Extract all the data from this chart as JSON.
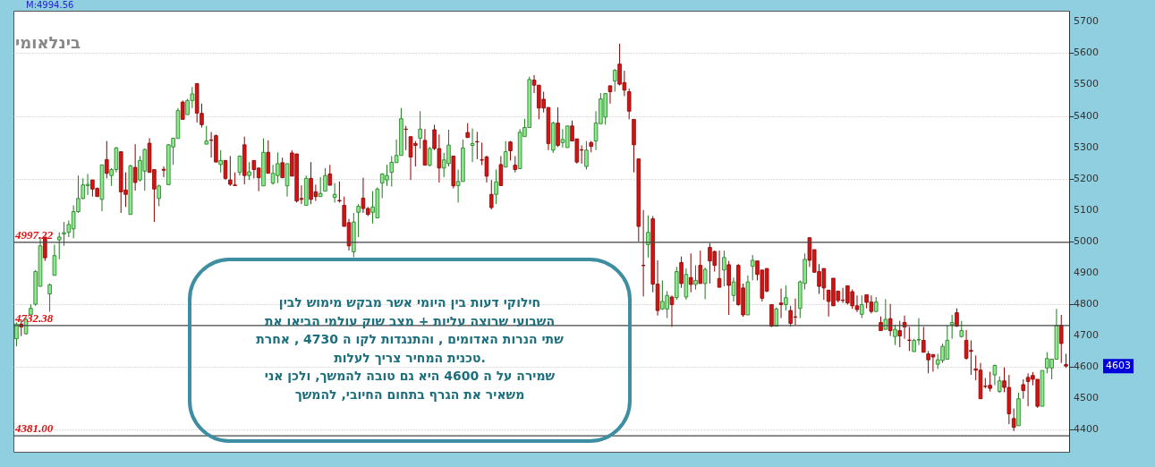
{
  "chart_data": {
    "type": "candlestick",
    "title": "בינלאומי",
    "categories": [
      null,
      null,
      null,
      null,
      null,
      null,
      null,
      null,
      null,
      null,
      null,
      null,
      null,
      null,
      null,
      null,
      null,
      null,
      null,
      null,
      null,
      null,
      null,
      null,
      null,
      null,
      null,
      null,
      null,
      null,
      null,
      null,
      null,
      null,
      null,
      null,
      null,
      null,
      null,
      null,
      null,
      null,
      null,
      null,
      null,
      null,
      null,
      null,
      null,
      null,
      null,
      null,
      null,
      null,
      null,
      null,
      null,
      null,
      null,
      null,
      null,
      null,
      null,
      null,
      null,
      null,
      null,
      null,
      null,
      null,
      null,
      null,
      null,
      null,
      null,
      null,
      null,
      null,
      null,
      null,
      null,
      null,
      null,
      null,
      null,
      null,
      null,
      null,
      null,
      null,
      null,
      null,
      null,
      null,
      null,
      null,
      null,
      null,
      null,
      null,
      null,
      null,
      null,
      null,
      null,
      null,
      null,
      null,
      null,
      null,
      null,
      null,
      null,
      null,
      null,
      null,
      null,
      null,
      null,
      null,
      null,
      null,
      null,
      null,
      null,
      null,
      null,
      null,
      null,
      null,
      null,
      null,
      null,
      null,
      null,
      null,
      null,
      null,
      null,
      null,
      null,
      null,
      null,
      null,
      null,
      null,
      null,
      null,
      null,
      null,
      null,
      null,
      null,
      null,
      null,
      null,
      null,
      null,
      null,
      null,
      null,
      null,
      null,
      null,
      null,
      null,
      null,
      null,
      null,
      null,
      null,
      null,
      null,
      null,
      null,
      null,
      null,
      null,
      null,
      null,
      null,
      null,
      null,
      null,
      null,
      null,
      null,
      null,
      null,
      null,
      null,
      null,
      null,
      null,
      null,
      null,
      null,
      null,
      null,
      null,
      null,
      null,
      null,
      null,
      null,
      null,
      null,
      null,
      null,
      null,
      null,
      null,
      null,
      null,
      null,
      null,
      null,
      null,
      null,
      null,
      null,
      null
    ],
    "ohlc": [
      [
        4690,
        4742,
        4666,
        4737
      ],
      [
        4737,
        4752,
        4699,
        4728
      ],
      [
        4706,
        4757,
        4704,
        4752
      ],
      [
        4766,
        4800,
        4766,
        4787
      ],
      [
        4800,
        4909,
        4795,
        4904
      ],
      [
        4857,
        5014,
        4857,
        4986
      ],
      [
        5014,
        5014,
        4938,
        4948
      ],
      [
        4833,
        4866,
        4776,
        4862
      ],
      [
        4892,
        4990,
        4892,
        4955
      ],
      [
        5005,
        5029,
        4943,
        5014
      ],
      [
        5024,
        5062,
        4986,
        5028
      ],
      [
        5029,
        5067,
        5014,
        5054
      ],
      [
        5040,
        5115,
        5010,
        5095
      ],
      [
        5095,
        5210,
        5091,
        5137
      ],
      [
        5137,
        5201,
        5134,
        5180
      ],
      [
        5178,
        5215,
        5148,
        5182
      ],
      [
        5196,
        5196,
        5143,
        5167
      ],
      [
        5169,
        5172,
        5143,
        5143
      ],
      [
        5134,
        5244,
        5096,
        5244
      ],
      [
        5261,
        5320,
        5201,
        5217
      ],
      [
        5210,
        5234,
        5177,
        5229
      ],
      [
        5229,
        5301,
        5220,
        5298
      ],
      [
        5286,
        5286,
        5091,
        5158
      ],
      [
        5164,
        5220,
        5110,
        5150
      ],
      [
        5086,
        5244,
        5086,
        5241
      ],
      [
        5236,
        5310,
        5162,
        5188
      ],
      [
        5196,
        5272,
        5191,
        5258
      ],
      [
        5224,
        5296,
        5162,
        5293
      ],
      [
        5313,
        5329,
        5220,
        5220
      ],
      [
        5229,
        5229,
        5062,
        5167
      ],
      [
        5137,
        5181,
        5112,
        5177
      ],
      [
        5230,
        5239,
        5205,
        5227
      ],
      [
        5181,
        5310,
        5181,
        5308
      ],
      [
        5301,
        5329,
        5244,
        5329
      ],
      [
        5328,
        5425,
        5328,
        5417
      ],
      [
        5444,
        5449,
        5389,
        5389
      ],
      [
        5404,
        5454,
        5404,
        5449
      ],
      [
        5449,
        5492,
        5425,
        5470
      ],
      [
        5503,
        5503,
        5379,
        5409
      ],
      [
        5408,
        5439,
        5363,
        5372
      ],
      [
        5310,
        5368,
        5310,
        5320
      ],
      [
        5323,
        5349,
        5267,
        5322
      ],
      [
        5337,
        5341,
        5253,
        5253
      ],
      [
        5245,
        5291,
        5220,
        5258
      ],
      [
        5258,
        5258,
        5196,
        5201
      ],
      [
        5196,
        5272,
        5177,
        5182
      ],
      [
        5180,
        5220,
        5177,
        5178
      ],
      [
        5220,
        5274,
        5210,
        5272
      ],
      [
        5308,
        5334,
        5182,
        5210
      ],
      [
        5210,
        5253,
        5196,
        5222
      ],
      [
        5258,
        5258,
        5201,
        5229
      ],
      [
        5234,
        5234,
        5160,
        5203
      ],
      [
        5177,
        5328,
        5177,
        5284
      ],
      [
        5284,
        5322,
        5217,
        5217
      ],
      [
        5186,
        5244,
        5181,
        5217
      ],
      [
        5210,
        5284,
        5186,
        5248
      ],
      [
        5251,
        5267,
        5203,
        5203
      ],
      [
        5177,
        5248,
        5143,
        5248
      ],
      [
        5282,
        5291,
        5208,
        5208
      ],
      [
        5279,
        5279,
        5124,
        5129
      ],
      [
        5137,
        5179,
        5119,
        5134
      ],
      [
        5115,
        5210,
        5115,
        5201
      ],
      [
        5201,
        5253,
        5119,
        5134
      ],
      [
        5158,
        5181,
        5129,
        5143
      ],
      [
        5143,
        5205,
        5143,
        5153
      ],
      [
        5160,
        5234,
        5160,
        5210
      ],
      [
        5215,
        5244,
        5179,
        5179
      ],
      [
        5140,
        5186,
        5124,
        5150
      ],
      [
        5131,
        5191,
        5124,
        5129
      ],
      [
        5115,
        5143,
        5048,
        5048
      ],
      [
        5060,
        5072,
        4971,
        4986
      ],
      [
        4967,
        5091,
        4950,
        5062
      ],
      [
        5093,
        5119,
        5014,
        5112
      ],
      [
        5138,
        5203,
        5091,
        5105
      ],
      [
        5105,
        5110,
        5081,
        5086
      ],
      [
        5093,
        5160,
        5057,
        5110
      ],
      [
        5075,
        5172,
        5075,
        5167
      ],
      [
        5186,
        5217,
        5138,
        5215
      ],
      [
        5196,
        5244,
        5177,
        5210
      ],
      [
        5220,
        5272,
        5175,
        5252
      ],
      [
        5251,
        5325,
        5251,
        5274
      ],
      [
        5274,
        5425,
        5274,
        5391
      ],
      [
        5358,
        5368,
        5291,
        5357
      ],
      [
        5334,
        5334,
        5196,
        5269
      ],
      [
        5312,
        5320,
        5239,
        5306
      ],
      [
        5329,
        5415,
        5296,
        5358
      ],
      [
        5322,
        5358,
        5243,
        5243
      ],
      [
        5243,
        5301,
        5239,
        5296
      ],
      [
        5356,
        5372,
        5291,
        5296
      ],
      [
        5296,
        5341,
        5188,
        5234
      ],
      [
        5234,
        5282,
        5205,
        5260
      ],
      [
        5248,
        5356,
        5239,
        5307
      ],
      [
        5272,
        5272,
        5169,
        5177
      ],
      [
        5178,
        5229,
        5124,
        5191
      ],
      [
        5191,
        5325,
        5191,
        5298
      ],
      [
        5347,
        5377,
        5331,
        5331
      ],
      [
        5306,
        5360,
        5253,
        5312
      ],
      [
        5318,
        5349,
        5262,
        5317
      ],
      [
        5260,
        5315,
        5243,
        5259
      ],
      [
        5269,
        5274,
        5188,
        5208
      ],
      [
        5150,
        5196,
        5102,
        5108
      ],
      [
        5150,
        5229,
        5119,
        5190
      ],
      [
        5245,
        5272,
        5178,
        5178
      ],
      [
        5237,
        5320,
        5237,
        5286
      ],
      [
        5317,
        5320,
        5258,
        5289
      ],
      [
        5243,
        5272,
        5220,
        5229
      ],
      [
        5232,
        5358,
        5232,
        5348
      ],
      [
        5334,
        5391,
        5334,
        5363
      ],
      [
        5363,
        5525,
        5363,
        5516
      ],
      [
        5514,
        5530,
        5473,
        5498
      ],
      [
        5498,
        5498,
        5389,
        5425
      ],
      [
        5453,
        5477,
        5411,
        5425
      ],
      [
        5427,
        5427,
        5291,
        5312
      ],
      [
        5291,
        5382,
        5282,
        5377
      ],
      [
        5377,
        5427,
        5301,
        5306
      ],
      [
        5315,
        5358,
        5299,
        5325
      ],
      [
        5299,
        5368,
        5299,
        5368
      ],
      [
        5368,
        5385,
        5320,
        5320
      ],
      [
        5327,
        5327,
        5248,
        5253
      ],
      [
        5292,
        5306,
        5248,
        5291
      ],
      [
        5239,
        5320,
        5229,
        5291
      ],
      [
        5315,
        5320,
        5284,
        5303
      ],
      [
        5320,
        5415,
        5291,
        5377
      ],
      [
        5375,
        5473,
        5375,
        5454
      ],
      [
        5396,
        5473,
        5372,
        5471
      ],
      [
        5496,
        5496,
        5439,
        5477
      ],
      [
        5511,
        5549,
        5477,
        5545
      ],
      [
        5565,
        5630,
        5497,
        5501
      ],
      [
        5506,
        5544,
        5463,
        5482
      ],
      [
        5477,
        5487,
        5389,
        5415
      ],
      [
        5389,
        5389,
        5220,
        5308
      ],
      [
        5263,
        5263,
        5000,
        5048
      ],
      [
        4924,
        5100,
        4825,
        4923
      ],
      [
        4990,
        5083,
        4949,
        5029
      ],
      [
        5072,
        5081,
        4838,
        4864
      ],
      [
        4864,
        4940,
        4764,
        4780
      ],
      [
        4785,
        4876,
        4782,
        4809
      ],
      [
        4785,
        4842,
        4756,
        4828
      ],
      [
        4823,
        4828,
        4728,
        4799
      ],
      [
        4821,
        4919,
        4814,
        4904
      ],
      [
        4933,
        4952,
        4852,
        4866
      ],
      [
        4823,
        4914,
        4814,
        4895
      ],
      [
        4885,
        4962,
        4838,
        4863
      ],
      [
        4863,
        4924,
        4847,
        4876
      ],
      [
        4924,
        4971,
        4866,
        4866
      ],
      [
        4866,
        4917,
        4816,
        4911
      ],
      [
        4981,
        4995,
        4866,
        4938
      ],
      [
        4968,
        4971,
        4904,
        4924
      ],
      [
        4882,
        4971,
        4854,
        4854
      ],
      [
        4909,
        4971,
        4857,
        4949
      ],
      [
        4926,
        4938,
        4766,
        4860
      ],
      [
        4828,
        4885,
        4809,
        4871
      ],
      [
        4924,
        4928,
        4795,
        4799
      ],
      [
        4852,
        4866,
        4760,
        4766
      ],
      [
        4766,
        4892,
        4766,
        4871
      ],
      [
        4921,
        4957,
        4876,
        4940
      ],
      [
        4938,
        4938,
        4876,
        4895
      ],
      [
        4909,
        4909,
        4809,
        4819
      ],
      [
        4914,
        4914,
        4838,
        4842
      ],
      [
        4799,
        4799,
        4728,
        4730
      ],
      [
        4730,
        4790,
        4730,
        4785
      ],
      [
        4804,
        4850,
        4756,
        4799
      ],
      [
        4799,
        4860,
        4780,
        4821
      ],
      [
        4780,
        4795,
        4730,
        4739
      ],
      [
        4760,
        4818,
        4733,
        4759
      ],
      [
        4787,
        4876,
        4756,
        4871
      ],
      [
        4866,
        4962,
        4847,
        4943
      ],
      [
        5012,
        5012,
        4919,
        4940
      ],
      [
        4974,
        4974,
        4900,
        4902
      ],
      [
        4904,
        4928,
        4833,
        4857
      ],
      [
        4914,
        4914,
        4814,
        4852
      ],
      [
        4845,
        4845,
        4761,
        4809
      ],
      [
        4883,
        4883,
        4795,
        4795
      ],
      [
        4842,
        4842,
        4806,
        4812
      ],
      [
        4813,
        4852,
        4804,
        4812
      ],
      [
        4859,
        4859,
        4799,
        4804
      ],
      [
        4840,
        4847,
        4785,
        4795
      ],
      [
        4795,
        4828,
        4775,
        4783
      ],
      [
        4768,
        4828,
        4756,
        4799
      ],
      [
        4830,
        4830,
        4787,
        4806
      ],
      [
        4807,
        4828,
        4771,
        4777
      ],
      [
        4777,
        4823,
        4775,
        4807
      ],
      [
        4742,
        4761,
        4716,
        4716
      ],
      [
        4720,
        4816,
        4720,
        4752
      ],
      [
        4754,
        4801,
        4699,
        4716
      ],
      [
        4697,
        4735,
        4670,
        4720
      ],
      [
        4716,
        4747,
        4663,
        4699
      ],
      [
        4742,
        4764,
        4690,
        4728
      ],
      [
        4686,
        4728,
        4651,
        4685
      ],
      [
        4649,
        4690,
        4649,
        4685
      ],
      [
        4686,
        4756,
        4670,
        4688
      ],
      [
        4685,
        4728,
        4647,
        4647
      ],
      [
        4642,
        4651,
        4580,
        4623
      ],
      [
        4640,
        4640,
        4585,
        4632
      ],
      [
        4609,
        4642,
        4594,
        4623
      ],
      [
        4621,
        4675,
        4613,
        4666
      ],
      [
        4625,
        4733,
        4625,
        4685
      ],
      [
        4735,
        4766,
        4690,
        4742
      ],
      [
        4773,
        4787,
        4728,
        4730
      ],
      [
        4697,
        4747,
        4694,
        4716
      ],
      [
        4685,
        4718,
        4623,
        4628
      ],
      [
        4653,
        4685,
        4575,
        4650
      ],
      [
        4594,
        4637,
        4558,
        4590
      ],
      [
        4590,
        4613,
        4499,
        4499
      ],
      [
        4539,
        4565,
        4532,
        4538
      ],
      [
        4542,
        4585,
        4522,
        4532
      ],
      [
        4575,
        4608,
        4542,
        4605
      ],
      [
        4522,
        4570,
        4518,
        4556
      ],
      [
        4556,
        4599,
        4520,
        4535
      ],
      [
        4535,
        4575,
        4418,
        4451
      ],
      [
        4436,
        4468,
        4396,
        4408
      ],
      [
        4413,
        4518,
        4413,
        4499
      ],
      [
        4544,
        4561,
        4499,
        4525
      ],
      [
        4567,
        4580,
        4475,
        4554
      ],
      [
        4573,
        4584,
        4542,
        4561
      ],
      [
        4561,
        4561,
        4470,
        4475
      ],
      [
        4475,
        4589,
        4475,
        4589
      ],
      [
        4597,
        4647,
        4580,
        4627
      ],
      [
        4597,
        4625,
        4561,
        4625
      ],
      [
        4625,
        4785,
        4625,
        4733
      ],
      [
        4733,
        4766,
        4613,
        4675
      ],
      [
        4608,
        4642,
        4597,
        4603
      ]
    ],
    "ylim": [
      4330,
      5735
    ],
    "yticks": [
      4400,
      4500,
      4600,
      4700,
      4800,
      4900,
      5000,
      5100,
      5200,
      5300,
      5400,
      5500,
      5600,
      5700
    ],
    "grid": "y",
    "ref_lines": [
      {
        "axis": "y",
        "value": 4997.22,
        "label": "4997.22"
      },
      {
        "axis": "y",
        "value": 4732.38,
        "label": "4732.38"
      },
      {
        "axis": "y",
        "value": 4381.0,
        "label": "4381.00"
      }
    ],
    "annotations": [
      "M:4994.56",
      "חילוקי דעות בין  היומי אשר  מבקש מימוש לבין\nהשבועי שרוצה עליות + מצב שוק עולמי  הביאו את\nשתי הנרות האדומים , והתנגדות  לקו ה 4730  , אחרת\nטכנית  המחיר    צריך לעלות.\nשמירה  על ה 4600 היא גם טובה להמשך, ולכן אני\nמשאיר  את הגרף  בתחום  החיובי, להמשך",
      "4603"
    ]
  }
}
